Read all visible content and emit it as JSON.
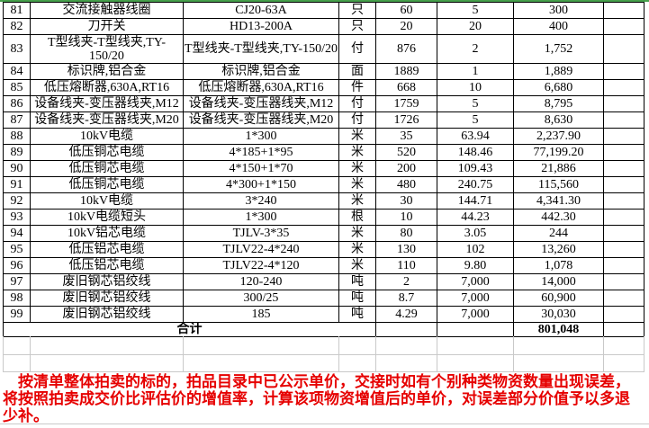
{
  "colors": {
    "top_line_green": "#46a04b",
    "note_red": "#e60000",
    "grid_gray": "#c9c9c9",
    "cell_border_black": "#000000"
  },
  "table": {
    "rows": [
      [
        "81",
        "交流接触器线圈",
        "CJ20-63A",
        "只",
        "60",
        "5",
        "300",
        ""
      ],
      [
        "82",
        "刀开关",
        "HD13-200A",
        "只",
        "20",
        "20",
        "400",
        ""
      ],
      [
        "83",
        "T型线夹-T型线夹,TY-150/20",
        "T型线夹-T型线夹,TY-150/20",
        "付",
        "876",
        "2",
        "1,752",
        ""
      ],
      [
        "84",
        "标识牌,铝合金",
        "标识牌,铝合金",
        "面",
        "1889",
        "1",
        "1,889",
        ""
      ],
      [
        "85",
        "低压熔断器,630A,RT16",
        "低压熔断器,630A,RT16",
        "件",
        "668",
        "10",
        "6,680",
        ""
      ],
      [
        "86",
        "设备线夹-变压器线夹,M12",
        "设备线夹-变压器线夹,M12",
        "付",
        "1759",
        "5",
        "8,795",
        ""
      ],
      [
        "87",
        "设备线夹-变压器线夹,M20",
        "设备线夹-变压器线夹,M20",
        "付",
        "1726",
        "5",
        "8,630",
        ""
      ],
      [
        "88",
        "10kV电缆",
        "1*300",
        "米",
        "35",
        "63.94",
        "2,237.90",
        ""
      ],
      [
        "89",
        "低压铜芯电缆",
        "4*185+1*95",
        "米",
        "520",
        "148.46",
        "77,199.20",
        ""
      ],
      [
        "90",
        "低压铜芯电缆",
        "4*150+1*70",
        "米",
        "200",
        "109.43",
        "21,886",
        ""
      ],
      [
        "91",
        "低压铜芯电缆",
        "4*300+1*150",
        "米",
        "480",
        "240.75",
        "115,560",
        ""
      ],
      [
        "92",
        "10kV电缆",
        "3*240",
        "米",
        "30",
        "144.71",
        "4,341.30",
        ""
      ],
      [
        "93",
        "10kV电缆短头",
        "1*300",
        "根",
        "10",
        "44.23",
        "442.30",
        ""
      ],
      [
        "94",
        "10kV铝芯电缆",
        "TJLV-3*35",
        "米",
        "80",
        "3.05",
        "244",
        ""
      ],
      [
        "95",
        "低压铝芯电缆",
        "TJLV22-4*240",
        "米",
        "130",
        "102",
        "13,260",
        ""
      ],
      [
        "96",
        "低压铝芯电缆",
        "TJLV22-4*120",
        "米",
        "110",
        "9.80",
        "1,078",
        ""
      ],
      [
        "97",
        "废旧钢芯铝绞线",
        "120-240",
        "吨",
        "2",
        "7,000",
        "14,000",
        ""
      ],
      [
        "98",
        "废旧钢芯铝绞线",
        "300/25",
        "吨",
        "8.7",
        "7,000",
        "60,900",
        ""
      ],
      [
        "99",
        "废旧钢芯铝绞线",
        "185",
        "吨",
        "4.29",
        "7,000",
        "30,030",
        ""
      ]
    ],
    "total_label": "合计",
    "total_qty": "",
    "total_price": "",
    "total_amount": "801,048",
    "total_extra": ""
  },
  "note": {
    "lines": [
      "按清单整体拍卖的标的，拍品目录中已公示单价，交接时如有个别种类物资数量出现误差，",
      "将按照拍卖成交价比评估价的增值率，计算该项物资增值后的单价，对误差部分价值予以多退",
      "少补。"
    ]
  }
}
